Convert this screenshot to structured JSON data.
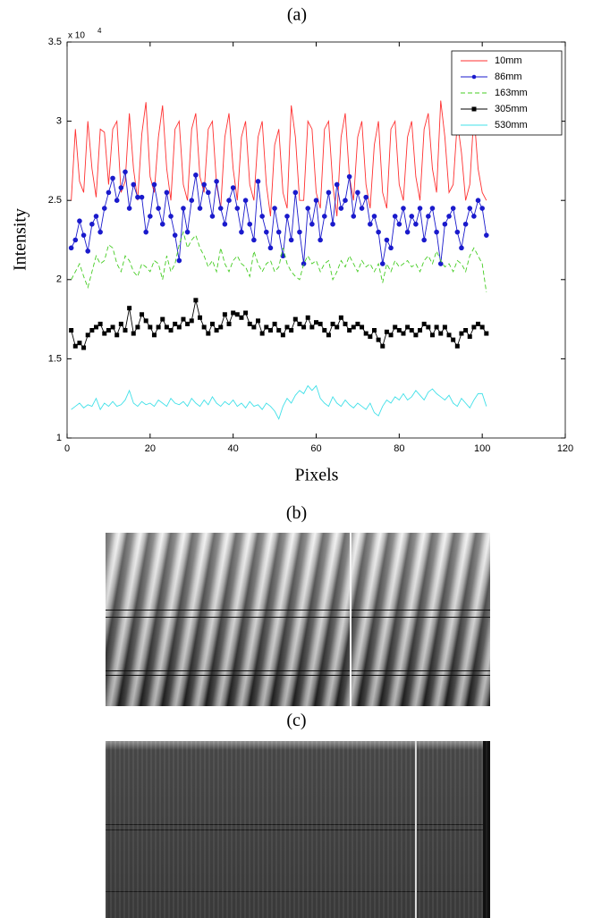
{
  "chart_data": {
    "type": "line",
    "title": "(a)",
    "x_label": "Pixels",
    "y_label": "Intensity",
    "y_multiplier": "x 10",
    "y_multiplier_exp": "4",
    "xlim": [
      0,
      120
    ],
    "xticks": [
      0,
      20,
      40,
      60,
      80,
      100,
      120
    ],
    "ylim": [
      1,
      3.5
    ],
    "yticks": [
      1,
      1.5,
      2,
      2.5,
      3,
      3.5
    ],
    "grid": false,
    "legend": "upper right",
    "x": [
      1,
      2,
      3,
      4,
      5,
      6,
      7,
      8,
      9,
      10,
      11,
      12,
      13,
      14,
      15,
      16,
      17,
      18,
      19,
      20,
      21,
      22,
      23,
      24,
      25,
      26,
      27,
      28,
      29,
      30,
      31,
      32,
      33,
      34,
      35,
      36,
      37,
      38,
      39,
      40,
      41,
      42,
      43,
      44,
      45,
      46,
      47,
      48,
      49,
      50,
      51,
      52,
      53,
      54,
      55,
      56,
      57,
      58,
      59,
      60,
      61,
      62,
      63,
      64,
      65,
      66,
      67,
      68,
      69,
      70,
      71,
      72,
      73,
      74,
      75,
      76,
      77,
      78,
      79,
      80,
      81,
      82,
      83,
      84,
      85,
      86,
      87,
      88,
      89,
      90,
      91,
      92,
      93,
      94,
      95,
      96,
      97,
      98,
      99,
      100,
      101
    ],
    "series": [
      {
        "name": "10mm",
        "color": "#ff3030",
        "linestyle": "solid",
        "marker": "none",
        "values": [
          2.5,
          2.95,
          2.62,
          2.55,
          3.0,
          2.7,
          2.52,
          2.95,
          2.93,
          2.6,
          2.95,
          3.0,
          2.55,
          2.62,
          3.05,
          2.7,
          2.5,
          2.92,
          3.12,
          2.65,
          2.55,
          2.9,
          3.1,
          2.7,
          2.5,
          2.95,
          3.0,
          2.6,
          2.5,
          2.95,
          3.05,
          2.65,
          2.55,
          2.95,
          3.0,
          2.6,
          2.45,
          2.9,
          3.05,
          2.7,
          2.5,
          2.9,
          3.0,
          2.6,
          2.5,
          2.9,
          3.0,
          2.6,
          2.4,
          2.85,
          2.95,
          2.55,
          2.45,
          3.1,
          2.9,
          2.5,
          2.5,
          3.0,
          2.95,
          2.55,
          2.45,
          2.95,
          3.0,
          2.6,
          2.4,
          2.9,
          3.05,
          2.65,
          2.5,
          2.9,
          3.0,
          2.6,
          2.45,
          2.85,
          3.0,
          2.55,
          2.45,
          2.95,
          3.0,
          2.6,
          2.5,
          2.9,
          3.0,
          2.65,
          2.5,
          2.95,
          3.05,
          2.7,
          2.55,
          3.13,
          2.9,
          2.55,
          2.6,
          3.0,
          2.8,
          2.5,
          2.6,
          3.05,
          2.7,
          2.55,
          2.5
        ]
      },
      {
        "name": "86mm",
        "color": "#1a1acc",
        "linestyle": "solid",
        "marker": "circle",
        "values": [
          2.2,
          2.25,
          2.37,
          2.28,
          2.18,
          2.35,
          2.4,
          2.3,
          2.45,
          2.55,
          2.64,
          2.5,
          2.58,
          2.68,
          2.45,
          2.6,
          2.52,
          2.52,
          2.3,
          2.4,
          2.6,
          2.45,
          2.35,
          2.55,
          2.4,
          2.28,
          2.12,
          2.45,
          2.3,
          2.5,
          2.66,
          2.45,
          2.6,
          2.55,
          2.4,
          2.62,
          2.45,
          2.35,
          2.5,
          2.58,
          2.45,
          2.3,
          2.5,
          2.35,
          2.25,
          2.62,
          2.4,
          2.3,
          2.2,
          2.45,
          2.3,
          2.15,
          2.4,
          2.25,
          2.55,
          2.3,
          2.1,
          2.45,
          2.35,
          2.5,
          2.25,
          2.4,
          2.55,
          2.35,
          2.6,
          2.45,
          2.5,
          2.65,
          2.4,
          2.55,
          2.45,
          2.52,
          2.35,
          2.4,
          2.3,
          2.1,
          2.25,
          2.2,
          2.4,
          2.35,
          2.45,
          2.3,
          2.4,
          2.35,
          2.45,
          2.25,
          2.4,
          2.45,
          2.3,
          2.1,
          2.35,
          2.4,
          2.45,
          2.3,
          2.2,
          2.35,
          2.45,
          2.4,
          2.5,
          2.45,
          2.28
        ]
      },
      {
        "name": "163mm",
        "color": "#44cc22",
        "linestyle": "dashed",
        "marker": "none",
        "values": [
          2.0,
          2.05,
          2.1,
          2.02,
          1.95,
          2.05,
          2.15,
          2.1,
          2.12,
          2.22,
          2.2,
          2.1,
          2.05,
          2.15,
          2.12,
          2.05,
          2.02,
          2.1,
          2.08,
          2.05,
          2.12,
          2.1,
          2.0,
          2.15,
          2.05,
          2.1,
          2.22,
          2.3,
          2.2,
          2.25,
          2.28,
          2.2,
          2.15,
          2.08,
          2.12,
          2.05,
          2.2,
          2.1,
          2.05,
          2.12,
          2.15,
          2.1,
          2.08,
          2.02,
          2.18,
          2.1,
          2.05,
          2.1,
          2.12,
          2.05,
          2.08,
          2.2,
          2.1,
          2.05,
          2.02,
          2.0,
          2.1,
          2.15,
          2.1,
          2.12,
          2.05,
          2.1,
          2.12,
          2.0,
          2.05,
          2.12,
          2.08,
          2.15,
          2.1,
          2.05,
          2.12,
          2.08,
          2.1,
          2.05,
          2.1,
          1.98,
          2.1,
          2.05,
          2.12,
          2.08,
          2.1,
          2.12,
          2.08,
          2.1,
          2.05,
          2.12,
          2.15,
          2.1,
          2.18,
          2.12,
          2.08,
          2.1,
          2.05,
          2.12,
          2.1,
          2.05,
          2.15,
          2.2,
          2.15,
          2.1,
          1.92
        ]
      },
      {
        "name": "305mm",
        "color": "#000000",
        "linestyle": "solid",
        "marker": "square",
        "values": [
          1.68,
          1.58,
          1.6,
          1.57,
          1.65,
          1.68,
          1.7,
          1.72,
          1.66,
          1.68,
          1.7,
          1.65,
          1.72,
          1.68,
          1.82,
          1.66,
          1.7,
          1.78,
          1.74,
          1.7,
          1.65,
          1.7,
          1.75,
          1.7,
          1.68,
          1.72,
          1.7,
          1.75,
          1.72,
          1.74,
          1.87,
          1.76,
          1.7,
          1.66,
          1.72,
          1.68,
          1.7,
          1.78,
          1.72,
          1.79,
          1.78,
          1.76,
          1.79,
          1.72,
          1.7,
          1.74,
          1.66,
          1.7,
          1.68,
          1.72,
          1.68,
          1.65,
          1.7,
          1.68,
          1.75,
          1.72,
          1.7,
          1.76,
          1.7,
          1.73,
          1.72,
          1.68,
          1.65,
          1.72,
          1.7,
          1.76,
          1.72,
          1.68,
          1.7,
          1.72,
          1.7,
          1.66,
          1.64,
          1.68,
          1.62,
          1.58,
          1.67,
          1.65,
          1.7,
          1.68,
          1.66,
          1.7,
          1.68,
          1.65,
          1.68,
          1.72,
          1.7,
          1.65,
          1.7,
          1.66,
          1.7,
          1.65,
          1.62,
          1.58,
          1.66,
          1.68,
          1.64,
          1.7,
          1.72,
          1.7,
          1.66
        ]
      },
      {
        "name": "530mm",
        "color": "#40e0e8",
        "linestyle": "solid",
        "marker": "none",
        "values": [
          1.18,
          1.2,
          1.22,
          1.19,
          1.21,
          1.2,
          1.25,
          1.18,
          1.22,
          1.2,
          1.23,
          1.2,
          1.21,
          1.24,
          1.3,
          1.22,
          1.2,
          1.23,
          1.21,
          1.22,
          1.2,
          1.24,
          1.22,
          1.2,
          1.25,
          1.22,
          1.21,
          1.23,
          1.2,
          1.25,
          1.22,
          1.2,
          1.24,
          1.21,
          1.26,
          1.22,
          1.2,
          1.23,
          1.21,
          1.24,
          1.2,
          1.22,
          1.19,
          1.23,
          1.2,
          1.21,
          1.18,
          1.22,
          1.2,
          1.17,
          1.12,
          1.2,
          1.25,
          1.22,
          1.27,
          1.3,
          1.28,
          1.33,
          1.3,
          1.33,
          1.25,
          1.22,
          1.2,
          1.26,
          1.22,
          1.2,
          1.24,
          1.21,
          1.19,
          1.22,
          1.2,
          1.18,
          1.22,
          1.16,
          1.14,
          1.2,
          1.24,
          1.22,
          1.26,
          1.24,
          1.28,
          1.24,
          1.26,
          1.3,
          1.27,
          1.24,
          1.29,
          1.31,
          1.28,
          1.26,
          1.24,
          1.27,
          1.22,
          1.2,
          1.25,
          1.22,
          1.19,
          1.24,
          1.28,
          1.28,
          1.2
        ]
      }
    ]
  },
  "panels": [
    {
      "label": "(b)"
    },
    {
      "label": "(c)"
    }
  ]
}
